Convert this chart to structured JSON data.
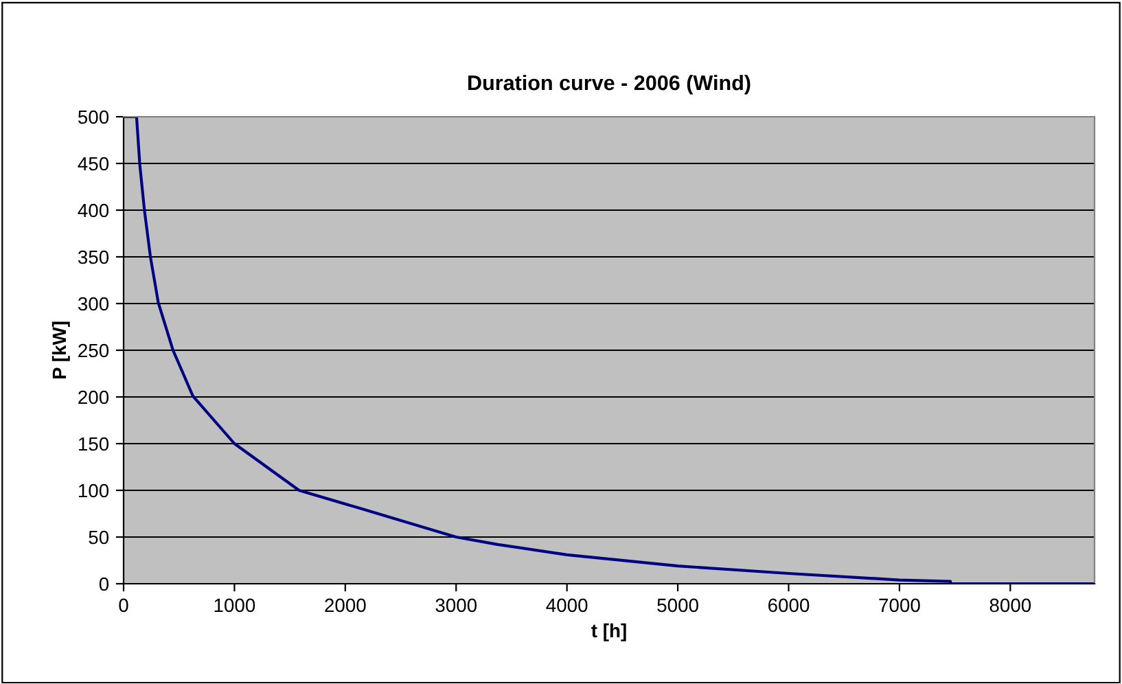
{
  "chart_data": {
    "type": "line",
    "title": "Duration curve - 2006 (Wind)",
    "xlabel": "t [h]",
    "ylabel": "P [kW]",
    "series": [
      {
        "color": "#000080",
        "x": [
          0,
          117,
          146,
          188,
          242,
          313,
          446,
          625,
          1000,
          1583,
          2125,
          3000,
          3375,
          4000,
          5000,
          6000,
          7000,
          7460,
          7461,
          8760
        ],
        "values": [
          500,
          500,
          449,
          400,
          350,
          301,
          250,
          201,
          150,
          100,
          81,
          50,
          42,
          31,
          19,
          11,
          4,
          2.5,
          0,
          0
        ]
      }
    ],
    "xlim": [
      0,
      8760
    ],
    "xticks": [
      0,
      1000,
      2000,
      3000,
      4000,
      5000,
      6000,
      7000,
      8000
    ],
    "ylim": [
      0,
      500
    ],
    "yticks": [
      0,
      50,
      100,
      150,
      200,
      250,
      300,
      350,
      400,
      450,
      500
    ],
    "grid": "y",
    "legend": false,
    "marker": "none",
    "line_style": "solid"
  }
}
